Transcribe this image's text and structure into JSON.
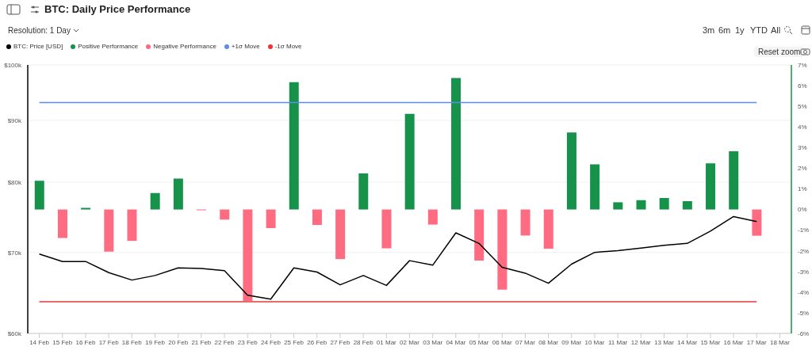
{
  "chart_data": {
    "type": "bar",
    "title": "BTC: Daily Price Performance",
    "annotations": [
      "Resolution: 1 Day",
      "3m",
      "6m",
      "1y",
      "YTD",
      "All",
      "Reset zoom"
    ],
    "categories": [
      "14 Feb",
      "15 Feb",
      "16 Feb",
      "17 Feb",
      "18 Feb",
      "19 Feb",
      "20 Feb",
      "21 Feb",
      "22 Feb",
      "23 Feb",
      "24 Feb",
      "25 Feb",
      "26 Feb",
      "27 Feb",
      "28 Feb",
      "01 Mar",
      "02 Mar",
      "03 Mar",
      "04 Mar",
      "05 Mar",
      "06 Mar",
      "07 Mar",
      "08 Mar",
      "09 Mar",
      "10 Mar",
      "11 Mar",
      "12 Mar",
      "13 Mar",
      "14 Mar",
      "15 Mar",
      "16 Mar",
      "17 Mar",
      "18 Mar"
    ],
    "series": [
      {
        "name": "BTC: Price [USD]",
        "type": "line",
        "color": "#000000",
        "values": [
          69790,
          68800,
          68800,
          67360,
          66410,
          66990,
          67970,
          67900,
          67600,
          64530,
          64040,
          67970,
          67430,
          65810,
          66990,
          65740,
          68910,
          68320,
          72660,
          71210,
          68040,
          67290,
          66010,
          68460,
          70000,
          70240,
          70570,
          70960,
          71210,
          72880,
          74940,
          74220,
          null
        ]
      },
      {
        "name": "Positive Performance",
        "axis": "y2",
        "color": "#16924a",
        "values": [
          1.39,
          null,
          0.08,
          null,
          null,
          0.8,
          1.5,
          null,
          null,
          null,
          null,
          6.17,
          null,
          null,
          1.75,
          null,
          4.63,
          null,
          6.37,
          null,
          null,
          null,
          null,
          3.73,
          2.19,
          0.35,
          0.45,
          0.56,
          0.4,
          2.24,
          2.82,
          null,
          null
        ]
      },
      {
        "name": "Negative Performance",
        "axis": "y2",
        "color": "#ff6b81",
        "values": [
          null,
          -1.38,
          null,
          -2.04,
          -1.52,
          null,
          null,
          -0.04,
          -0.49,
          -4.43,
          -0.9,
          null,
          -0.75,
          -2.4,
          null,
          -1.88,
          null,
          -0.73,
          null,
          -2.47,
          -3.88,
          -1.26,
          -1.9,
          null,
          null,
          null,
          null,
          null,
          null,
          null,
          null,
          -1.27,
          null
        ]
      },
      {
        "name": "+1σ Move",
        "type": "line",
        "axis": "y2",
        "color": "#5b8def",
        "values": [
          5.18,
          5.18,
          5.18,
          5.18,
          5.18,
          5.18,
          5.18,
          5.18,
          5.18,
          5.18,
          5.18,
          5.18,
          5.18,
          5.18,
          5.18,
          5.18,
          5.18,
          5.18,
          5.18,
          5.18,
          5.18,
          5.18,
          5.18,
          5.18,
          5.18,
          5.18,
          5.18,
          5.18,
          5.18,
          5.18,
          5.18,
          5.18,
          null
        ]
      },
      {
        "name": "-1σ Move",
        "type": "line",
        "axis": "y2",
        "color": "#e5383b",
        "values": [
          -4.47,
          -4.47,
          -4.47,
          -4.47,
          -4.47,
          -4.47,
          -4.47,
          -4.47,
          -4.47,
          -4.47,
          -4.47,
          -4.47,
          -4.47,
          -4.47,
          -4.47,
          -4.47,
          -4.47,
          -4.47,
          -4.47,
          -4.47,
          -4.47,
          -4.47,
          -4.47,
          -4.47,
          -4.47,
          -4.47,
          -4.47,
          -4.47,
          -4.47,
          -4.47,
          -4.47,
          -4.47,
          null
        ]
      }
    ],
    "stacked": true,
    "log": "y",
    "ylim": [
      60000,
      100000
    ],
    "yticks": [
      {
        "value": 60000,
        "label": "$60k"
      },
      {
        "value": 70000,
        "label": "$70k"
      },
      {
        "value": 80000,
        "label": "$80k"
      },
      {
        "value": 90000,
        "label": "$90k"
      },
      {
        "value": 100000,
        "label": "$100k"
      }
    ],
    "y2lim": [
      -6,
      7
    ],
    "y2ticks": [
      {
        "value": -6,
        "label": "-6%"
      },
      {
        "value": -5,
        "label": "-5%"
      },
      {
        "value": -4,
        "label": "-4%"
      },
      {
        "value": -3,
        "label": "-3%"
      },
      {
        "value": -2,
        "label": "-2%"
      },
      {
        "value": -1,
        "label": "-1%"
      },
      {
        "value": 0,
        "label": "0%"
      },
      {
        "value": 1,
        "label": "1%"
      },
      {
        "value": 2,
        "label": "2%"
      },
      {
        "value": 3,
        "label": "3%"
      },
      {
        "value": 4,
        "label": "4%"
      },
      {
        "value": 5,
        "label": "5%"
      },
      {
        "value": 6,
        "label": "6%"
      },
      {
        "value": 7,
        "label": "7%"
      }
    ],
    "grid": "y",
    "legend": "top left",
    "marker": "none"
  }
}
